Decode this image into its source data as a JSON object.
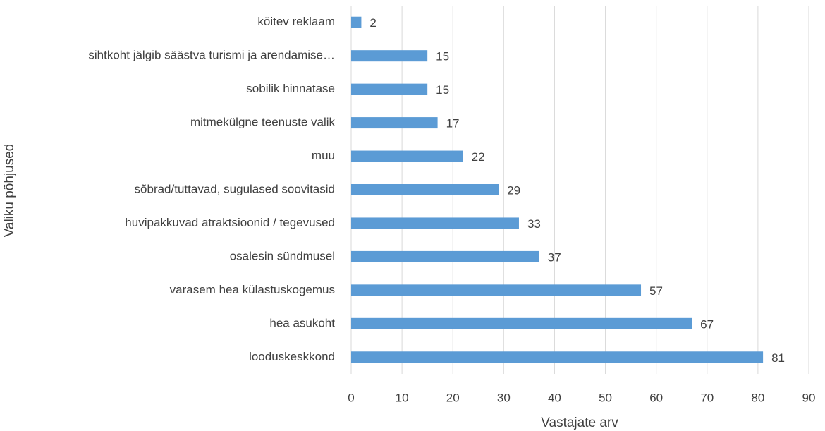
{
  "chart_data": {
    "type": "bar",
    "orientation": "horizontal",
    "categories": [
      "köitev reklaam",
      "sihtkoht jälgib säästva turismi ja arendamise…",
      "sobilik hinnatase",
      "mitmekülgne teenuste valik",
      "muu",
      "sõbrad/tuttavad, sugulased soovitasid",
      "huvipakkuvad atraktsioonid / tegevused",
      "osalesin sündmusel",
      "varasem hea külastuskogemus",
      "hea asukoht",
      "looduskeskkond"
    ],
    "values": [
      2,
      15,
      15,
      17,
      22,
      29,
      33,
      37,
      57,
      67,
      81
    ],
    "color": "#5b9bd5",
    "xlim": [
      0,
      90
    ],
    "xticks": [
      0,
      10,
      20,
      30,
      40,
      50,
      60,
      70,
      80,
      90
    ],
    "xlabel": "Vastajate arv",
    "ylabel": "Valiku põhjused",
    "grid": true
  }
}
